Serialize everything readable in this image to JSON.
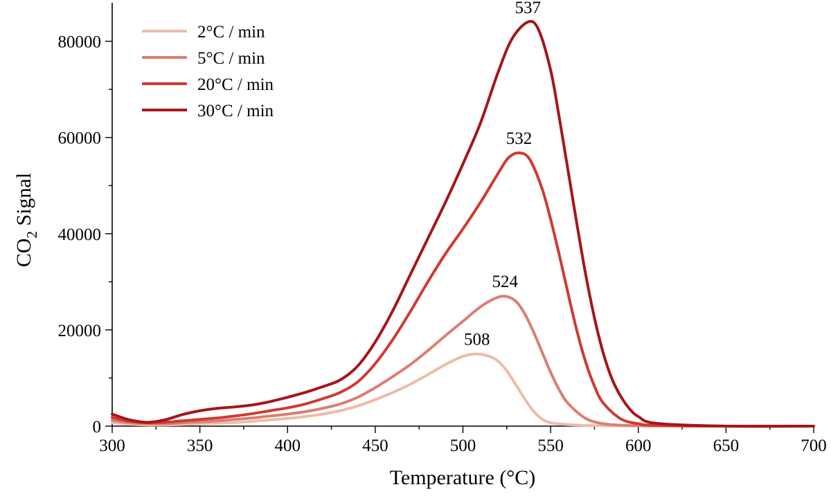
{
  "chart_data": {
    "type": "line",
    "xlabel": "Temperature (°C)",
    "ylabel_main": "CO",
    "ylabel_sub": "2",
    "ylabel_rest": " Signal",
    "xlim": [
      300,
      700
    ],
    "ylim": [
      0,
      88000
    ],
    "xticks": [
      300,
      350,
      400,
      450,
      500,
      550,
      600,
      650,
      700
    ],
    "yticks": [
      0,
      20000,
      40000,
      60000,
      80000
    ],
    "grid": false,
    "legend_position": "top-left",
    "series": [
      {
        "name": "2°C / min",
        "color": "#ecbca9",
        "peak_label": "508",
        "x": [
          300,
          310,
          320,
          330,
          340,
          350,
          360,
          370,
          380,
          390,
          400,
          410,
          420,
          430,
          440,
          450,
          460,
          470,
          480,
          490,
          500,
          508,
          515,
          520,
          525,
          530,
          535,
          540,
          545,
          550,
          560,
          570,
          580,
          600,
          650,
          700
        ],
        "y": [
          700,
          400,
          250,
          250,
          350,
          500,
          600,
          750,
          1000,
          1300,
          1600,
          2000,
          2500,
          3200,
          4200,
          5500,
          7000,
          8700,
          10700,
          12800,
          14500,
          15000,
          14500,
          13500,
          11500,
          8700,
          5800,
          3200,
          1500,
          700,
          300,
          150,
          100,
          50,
          0,
          0
        ]
      },
      {
        "name": "5°C / min",
        "color": "#db7e73",
        "peak_label": "524",
        "x": [
          300,
          310,
          320,
          330,
          340,
          350,
          360,
          370,
          380,
          390,
          400,
          410,
          420,
          430,
          440,
          450,
          460,
          470,
          480,
          490,
          500,
          510,
          518,
          524,
          530,
          535,
          540,
          545,
          550,
          555,
          560,
          570,
          580,
          590,
          600,
          650,
          700
        ],
        "y": [
          1200,
          700,
          500,
          500,
          700,
          900,
          1100,
          1400,
          1700,
          2100,
          2500,
          3000,
          3700,
          4600,
          6000,
          8000,
          10300,
          12800,
          15700,
          18800,
          21800,
          24800,
          26500,
          27000,
          26000,
          23500,
          19800,
          15500,
          11200,
          7500,
          4700,
          1600,
          500,
          200,
          100,
          0,
          0
        ]
      },
      {
        "name": "20°C / min",
        "color": "#cf3a2f",
        "peak_label": "532",
        "x": [
          300,
          310,
          320,
          330,
          340,
          350,
          360,
          370,
          380,
          390,
          400,
          410,
          420,
          430,
          440,
          450,
          460,
          470,
          480,
          490,
          500,
          510,
          520,
          526,
          532,
          538,
          545,
          550,
          555,
          560,
          565,
          570,
          575,
          580,
          590,
          600,
          610,
          650,
          700
        ],
        "y": [
          1800,
          1000,
          700,
          800,
          1100,
          1400,
          1700,
          2100,
          2600,
          3200,
          3800,
          4600,
          5700,
          7000,
          9200,
          13000,
          18000,
          23800,
          30000,
          35800,
          41000,
          46500,
          52500,
          55800,
          56800,
          55500,
          49500,
          43000,
          35500,
          27500,
          19800,
          13300,
          8300,
          4800,
          1500,
          500,
          150,
          0,
          0
        ]
      },
      {
        "name": "30°C / min",
        "color": "#a4151c",
        "peak_label": "537",
        "x": [
          300,
          310,
          320,
          330,
          340,
          350,
          360,
          370,
          380,
          390,
          400,
          410,
          420,
          430,
          440,
          450,
          460,
          470,
          480,
          490,
          500,
          510,
          520,
          528,
          537,
          543,
          550,
          555,
          560,
          565,
          570,
          575,
          580,
          585,
          590,
          595,
          600,
          610,
          650,
          700
        ],
        "y": [
          2500,
          1300,
          800,
          1300,
          2400,
          3200,
          3700,
          4000,
          4400,
          5100,
          6000,
          7000,
          8200,
          9600,
          12500,
          17500,
          24000,
          31500,
          39000,
          46500,
          54500,
          63000,
          73500,
          80500,
          84000,
          82500,
          74000,
          64000,
          53000,
          42000,
          31500,
          22500,
          15200,
          9800,
          6200,
          3600,
          2000,
          600,
          0,
          0
        ]
      }
    ]
  }
}
